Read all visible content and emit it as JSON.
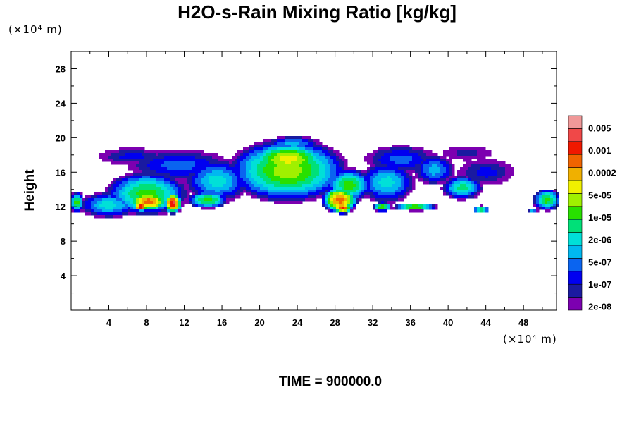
{
  "chart_data": {
    "type": "heatmap",
    "title": "H2O-s-Rain Mixing Ratio [kg/kg]",
    "xlabel": "",
    "ylabel": "Height",
    "x_unit_label": "(×10⁴ m)",
    "y_unit_label": "(×10⁴ m)",
    "xlim": [
      0,
      51.5
    ],
    "ylim": [
      0,
      30
    ],
    "x_ticks": [
      4,
      8,
      12,
      16,
      20,
      24,
      28,
      32,
      36,
      40,
      44,
      48
    ],
    "y_ticks": [
      4,
      8,
      12,
      16,
      20,
      24,
      28
    ],
    "x_tick_labels": [
      "4",
      "8",
      "12",
      "16",
      "20",
      "24",
      "28",
      "32",
      "36",
      "40",
      "44",
      "48"
    ],
    "y_tick_labels": [
      "4",
      "8",
      "12",
      "16",
      "20",
      "24",
      "28"
    ],
    "colorbar": {
      "levels": [
        "0.005",
        "0.001",
        "0.0002",
        "5e-05",
        "1e-05",
        "2e-06",
        "5e-07",
        "1e-07",
        "2e-08"
      ],
      "colors": [
        "#7c00b0",
        "#1a1aa0",
        "#0000f0",
        "#0a64f0",
        "#00b8f0",
        "#00e0d8",
        "#00e078",
        "#28e000",
        "#a0f000",
        "#f0f000",
        "#f0b000",
        "#f06400",
        "#f01800",
        "#f04848",
        "#f09898"
      ]
    },
    "footer": "TIME = 900000.0",
    "field_blobs": [
      {
        "x": 4,
        "y": 12.2,
        "sx": 3.2,
        "sy": 1.5,
        "lv": 4
      },
      {
        "x": 8,
        "y": 13.5,
        "sx": 4.5,
        "sy": 2.6,
        "lv": 6
      },
      {
        "x": 8.2,
        "y": 12.6,
        "sx": 2.4,
        "sy": 1.2,
        "lv": 10
      },
      {
        "x": 10.8,
        "y": 12.4,
        "sx": 1.0,
        "sy": 1.3,
        "lv": 12
      },
      {
        "x": 7.4,
        "y": 12.0,
        "sx": 0.9,
        "sy": 0.6,
        "lv": 12
      },
      {
        "x": 11.5,
        "y": 16.8,
        "sx": 5.5,
        "sy": 1.8,
        "lv": 2
      },
      {
        "x": 15.5,
        "y": 15.0,
        "sx": 3.5,
        "sy": 2.5,
        "lv": 4
      },
      {
        "x": 14.5,
        "y": 12.8,
        "sx": 2.2,
        "sy": 1.0,
        "lv": 6
      },
      {
        "x": 6.5,
        "y": 17.8,
        "sx": 3.5,
        "sy": 1.0,
        "lv": 1
      },
      {
        "x": 23,
        "y": 16.2,
        "sx": 6.5,
        "sy": 3.8,
        "lv": 7
      },
      {
        "x": 23,
        "y": 17.5,
        "sx": 4.5,
        "sy": 2.0,
        "lv": 8
      },
      {
        "x": 23.5,
        "y": 19.3,
        "sx": 3.0,
        "sy": 0.9,
        "lv": 3
      },
      {
        "x": 28.5,
        "y": 12.8,
        "sx": 2.0,
        "sy": 1.6,
        "lv": 10
      },
      {
        "x": 28.8,
        "y": 11.9,
        "sx": 1.1,
        "sy": 0.8,
        "lv": 11
      },
      {
        "x": 29.5,
        "y": 14.5,
        "sx": 2.5,
        "sy": 2.0,
        "lv": 6
      },
      {
        "x": 33.5,
        "y": 14.8,
        "sx": 3.0,
        "sy": 2.4,
        "lv": 4
      },
      {
        "x": 35,
        "y": 17.5,
        "sx": 3.8,
        "sy": 1.6,
        "lv": 2
      },
      {
        "x": 38.5,
        "y": 16.3,
        "sx": 2.2,
        "sy": 1.8,
        "lv": 3
      },
      {
        "x": 41.5,
        "y": 14.2,
        "sx": 2.2,
        "sy": 1.4,
        "lv": 5
      },
      {
        "x": 44,
        "y": 16.0,
        "sx": 3.0,
        "sy": 1.5,
        "lv": 1
      },
      {
        "x": 42,
        "y": 18.2,
        "sx": 2.5,
        "sy": 0.8,
        "lv": 0
      },
      {
        "x": 36.5,
        "y": 12.0,
        "sx": 2.4,
        "sy": 0.5,
        "lv": 7
      },
      {
        "x": 33,
        "y": 12.0,
        "sx": 1.0,
        "sy": 0.6,
        "lv": 7
      },
      {
        "x": 43.5,
        "y": 11.7,
        "sx": 0.9,
        "sy": 0.5,
        "lv": 6
      },
      {
        "x": 50.5,
        "y": 12.8,
        "sx": 1.5,
        "sy": 1.3,
        "lv": 6
      },
      {
        "x": 0.6,
        "y": 12.5,
        "sx": 0.8,
        "sy": 1.2,
        "lv": 6
      },
      {
        "x": 49,
        "y": 11.5,
        "sx": 0.5,
        "sy": 0.3,
        "lv": 3
      }
    ]
  }
}
